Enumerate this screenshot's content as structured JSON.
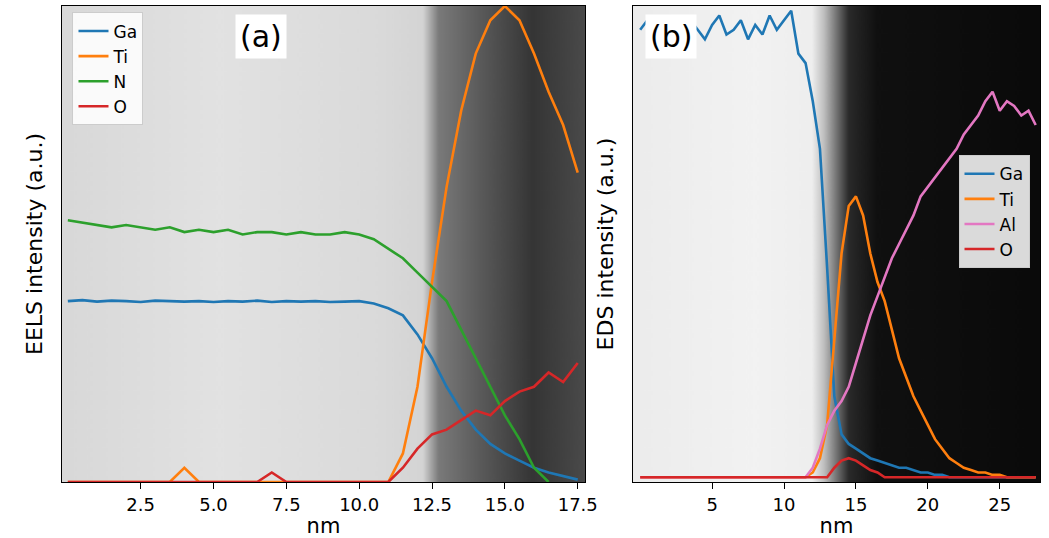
{
  "chart_data": [
    {
      "type": "line",
      "x_label": "nm",
      "y_label": "EELS intensity (a.u.)",
      "annotations": [
        {
          "text": "(a)"
        }
      ],
      "legend": "upper left",
      "tick_labels": "x",
      "grid": false,
      "xlim": [
        -0.2,
        17.75
      ],
      "xticks": [
        2.5,
        {
          "value": 5,
          "label": "5.0"
        },
        7.5,
        {
          "value": 10,
          "label": "10.0"
        },
        12.5,
        {
          "value": 15,
          "label": "15.0"
        },
        17.5
      ],
      "ylim": [
        0,
        1
      ],
      "yticks": [],
      "x": [
        0,
        0.5,
        1,
        1.5,
        2,
        2.5,
        3,
        3.5,
        4,
        4.5,
        5,
        5.5,
        6,
        6.5,
        7,
        7.5,
        8,
        8.5,
        9,
        9.5,
        10,
        10.5,
        11,
        11.5,
        12,
        12.5,
        13,
        13.5,
        14,
        14.5,
        15,
        15.5,
        16,
        16.5,
        17,
        17.5
      ],
      "series": [
        {
          "name": "Ga",
          "color": "#1f77b4",
          "values": [
            0.38,
            0.382,
            0.379,
            0.381,
            0.38,
            0.378,
            0.381,
            0.38,
            0.379,
            0.38,
            0.378,
            0.38,
            0.379,
            0.381,
            0.378,
            0.38,
            0.379,
            0.38,
            0.378,
            0.379,
            0.38,
            0.375,
            0.365,
            0.35,
            0.31,
            0.26,
            0.2,
            0.15,
            0.11,
            0.08,
            0.06,
            0.045,
            0.03,
            0.02,
            0.012,
            0.005
          ]
        },
        {
          "name": "Ti",
          "color": "#ff7f0e",
          "values": [
            0,
            0,
            0,
            0,
            0,
            0,
            0,
            0,
            0.03,
            0,
            0,
            0,
            0,
            0,
            0,
            0,
            0,
            0,
            0,
            0,
            0,
            0,
            0,
            0.06,
            0.2,
            0.42,
            0.62,
            0.78,
            0.9,
            0.97,
            1.0,
            0.97,
            0.9,
            0.82,
            0.75,
            0.65
          ]
        },
        {
          "name": "N",
          "color": "#2ca02c",
          "values": [
            0.55,
            0.545,
            0.54,
            0.535,
            0.54,
            0.535,
            0.53,
            0.535,
            0.525,
            0.53,
            0.525,
            0.53,
            0.52,
            0.525,
            0.525,
            0.52,
            0.525,
            0.52,
            0.52,
            0.525,
            0.52,
            0.51,
            0.49,
            0.47,
            0.44,
            0.41,
            0.38,
            0.32,
            0.26,
            0.2,
            0.14,
            0.09,
            0.03,
            0,
            null,
            null
          ]
        },
        {
          "name": "O",
          "color": "#d62728",
          "values": [
            0,
            0,
            0,
            0,
            0,
            0,
            0,
            0,
            0,
            0,
            0,
            0,
            0,
            0,
            0.02,
            0,
            0,
            0,
            0,
            0,
            0,
            0,
            0,
            0.03,
            0.07,
            0.1,
            0.11,
            0.13,
            0.15,
            0.14,
            0.17,
            0.19,
            0.2,
            0.23,
            0.21,
            0.25
          ]
        }
      ]
    },
    {
      "type": "line",
      "x_label": "nm",
      "y_label": "EDS intensity (a.u.)",
      "annotations": [
        {
          "text": "(b)"
        }
      ],
      "legend": "center right",
      "tick_labels": "x",
      "grid": false,
      "xlim": [
        -0.5,
        27.8
      ],
      "xticks": [
        5,
        10,
        15,
        20,
        25
      ],
      "ylim": [
        0,
        1
      ],
      "yticks": [],
      "x": [
        0,
        0.5,
        1,
        1.5,
        2,
        2.5,
        3,
        3.5,
        4,
        4.5,
        5,
        5.5,
        6,
        6.5,
        7,
        7.5,
        8,
        8.5,
        9,
        9.5,
        10,
        10.5,
        11,
        11.5,
        12,
        12.5,
        13,
        13.5,
        14,
        14.5,
        15,
        15.5,
        16,
        16.5,
        17,
        17.5,
        18,
        18.5,
        19,
        19.5,
        20,
        20.5,
        21,
        21.5,
        22,
        22.5,
        23,
        23.5,
        24,
        24.5,
        25,
        25.5,
        26,
        26.5,
        27,
        27.5
      ],
      "series": [
        {
          "name": "Ga",
          "color": "#1f77b4",
          "values": [
            0.95,
            0.97,
            0.93,
            0.98,
            0.94,
            0.96,
            0.92,
            0.97,
            0.95,
            0.93,
            0.96,
            0.98,
            0.94,
            0.95,
            0.97,
            0.93,
            0.96,
            0.94,
            0.98,
            0.95,
            0.97,
            0.99,
            0.9,
            0.88,
            0.8,
            0.7,
            0.45,
            0.18,
            0.1,
            0.08,
            0.07,
            0.06,
            0.05,
            0.045,
            0.04,
            0.035,
            0.03,
            0.03,
            0.025,
            0.02,
            0.02,
            0.015,
            0.015,
            0.01,
            0.01,
            0.01,
            0.01,
            0.01,
            0.01,
            0.01,
            0.01,
            0.01,
            0.01,
            0.01,
            0.01,
            0.01
          ]
        },
        {
          "name": "Ti",
          "color": "#ff7f0e",
          "values": [
            0.01,
            0.01,
            0.01,
            0.01,
            0.01,
            0.01,
            0.01,
            0.01,
            0.01,
            0.01,
            0.01,
            0.01,
            0.01,
            0.01,
            0.01,
            0.01,
            0.01,
            0.01,
            0.01,
            0.01,
            0.01,
            0.01,
            0.01,
            0.01,
            0.02,
            0.05,
            0.12,
            0.3,
            0.48,
            0.58,
            0.6,
            0.56,
            0.48,
            0.42,
            0.38,
            0.32,
            0.26,
            0.22,
            0.18,
            0.15,
            0.12,
            0.09,
            0.07,
            0.05,
            0.04,
            0.03,
            0.025,
            0.02,
            0.02,
            0.015,
            0.015,
            0.01,
            0.01,
            0.01,
            0.01,
            0.01
          ]
        },
        {
          "name": "Al",
          "color": "#e377c2",
          "values": [
            0.01,
            0.01,
            0.01,
            0.01,
            0.01,
            0.01,
            0.01,
            0.01,
            0.01,
            0.01,
            0.01,
            0.01,
            0.01,
            0.01,
            0.01,
            0.01,
            0.01,
            0.01,
            0.01,
            0.01,
            0.01,
            0.01,
            0.01,
            0.01,
            0.03,
            0.07,
            0.12,
            0.15,
            0.17,
            0.2,
            0.25,
            0.3,
            0.35,
            0.39,
            0.43,
            0.47,
            0.5,
            0.53,
            0.56,
            0.6,
            0.62,
            0.64,
            0.66,
            0.68,
            0.7,
            0.73,
            0.75,
            0.77,
            0.8,
            0.82,
            0.78,
            0.8,
            0.79,
            0.77,
            0.78,
            0.75
          ]
        },
        {
          "name": "O",
          "color": "#d62728",
          "values": [
            0.01,
            0.01,
            0.01,
            0.01,
            0.01,
            0.01,
            0.01,
            0.01,
            0.01,
            0.01,
            0.01,
            0.01,
            0.01,
            0.01,
            0.01,
            0.01,
            0.01,
            0.01,
            0.01,
            0.01,
            0.01,
            0.01,
            0.01,
            0.01,
            0.01,
            0.01,
            0.01,
            0.03,
            0.045,
            0.05,
            0.045,
            0.035,
            0.025,
            0.02,
            0.01,
            0.01,
            0.01,
            0.01,
            0.01,
            0.01,
            0.01,
            0.01,
            0.01,
            0.01,
            0.01,
            0.01,
            0.01,
            0.01,
            0.01,
            0.01,
            0.01,
            0.01,
            0.01,
            0.01,
            0.01,
            0.01
          ]
        }
      ]
    }
  ]
}
